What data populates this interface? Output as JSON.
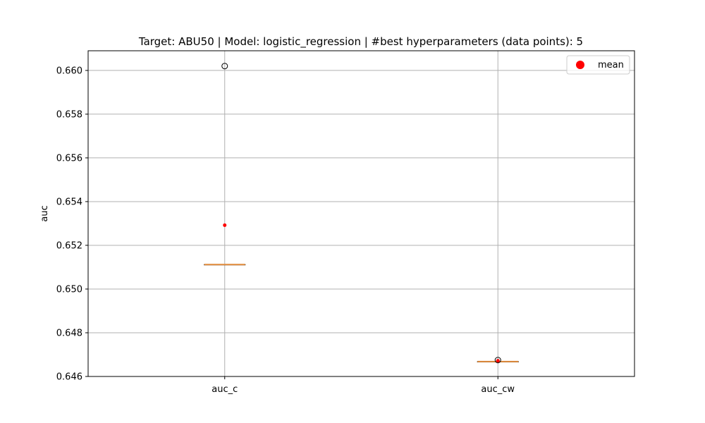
{
  "chart_data": {
    "type": "box",
    "title": "Target: ABU50 | Model: logistic_regression | #best hyperparameters (data points): 5",
    "xlabel": "",
    "ylabel": "auc",
    "categories": [
      "auc_c",
      "auc_cw"
    ],
    "ylim": [
      0.646,
      0.6609
    ],
    "yticks": [
      0.646,
      0.648,
      0.65,
      0.652,
      0.654,
      0.656,
      0.658,
      0.66
    ],
    "ytick_labels": [
      "0.646",
      "0.648",
      "0.650",
      "0.652",
      "0.654",
      "0.656",
      "0.658",
      "0.660"
    ],
    "boxes": [
      {
        "category": "auc_c",
        "q1": 0.65112,
        "median": 0.65112,
        "q3": 0.65112,
        "whisker_low": 0.65112,
        "whisker_high": 0.65112,
        "mean": 0.65292,
        "outliers": [
          0.6602
        ]
      },
      {
        "category": "auc_cw",
        "q1": 0.64668,
        "median": 0.64668,
        "q3": 0.64668,
        "whisker_low": 0.64668,
        "whisker_high": 0.64668,
        "mean": 0.64672,
        "outliers": [
          0.64675
        ]
      }
    ],
    "legend": {
      "position": "top-right",
      "entries": [
        {
          "label": "mean",
          "marker": "circle",
          "color": "#ff0000"
        }
      ]
    },
    "grid": true,
    "colors": {
      "median": "#e08a3a",
      "box": "#000000",
      "mean": "#ff0000",
      "grid": "#b0b0b0"
    }
  }
}
